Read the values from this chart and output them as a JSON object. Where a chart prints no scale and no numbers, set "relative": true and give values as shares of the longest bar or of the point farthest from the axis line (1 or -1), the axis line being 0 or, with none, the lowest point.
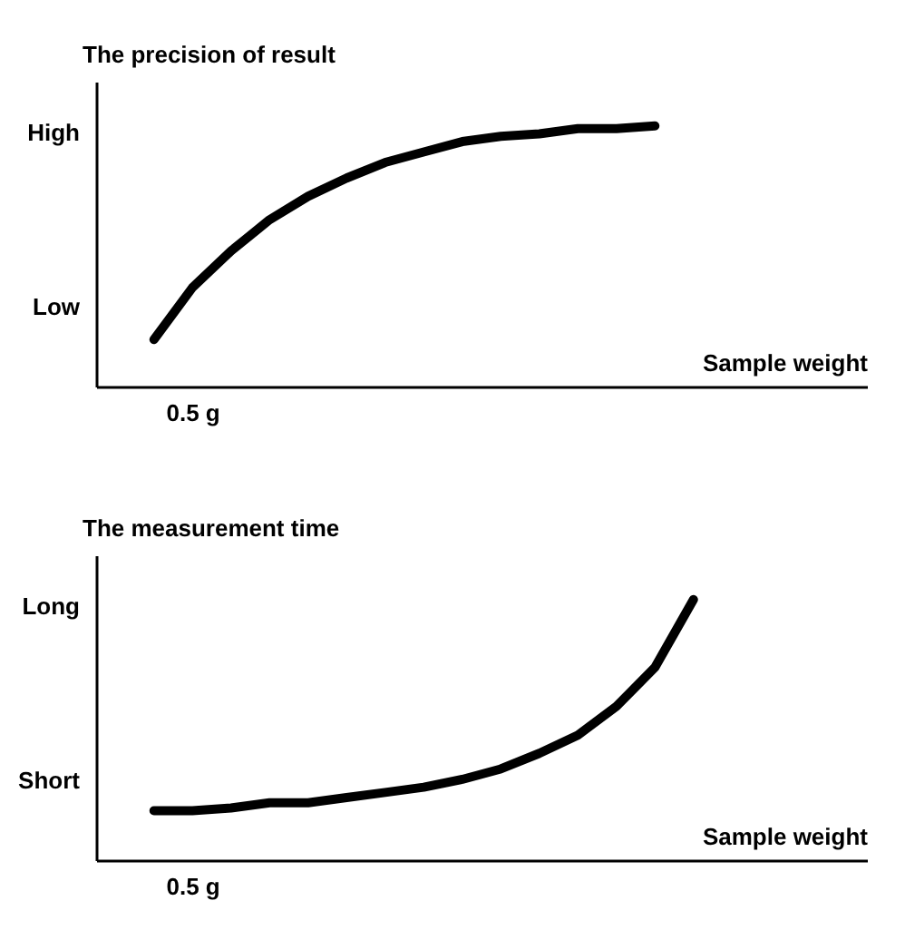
{
  "chart_data": [
    {
      "type": "line",
      "ylabel": "The precision of result",
      "xlabel": "Sample weight",
      "line_style": "solid",
      "grid": false,
      "legend": false,
      "relative": true,
      "annotations": [
        "Low",
        "High",
        "0.5 g"
      ],
      "categories": [
        null,
        null,
        null,
        null,
        null,
        null,
        null,
        null,
        null,
        null,
        null,
        null,
        null,
        null,
        null,
        null,
        null,
        null,
        null,
        null
      ],
      "series": [
        {
          "color": "#000000",
          "values": [
            null,
            0.18,
            0.38,
            0.52,
            0.64,
            0.73,
            0.8,
            0.86,
            0.9,
            0.94,
            0.96,
            0.97,
            0.99,
            0.99,
            1.0,
            null,
            null,
            null,
            null,
            null
          ]
        }
      ]
    },
    {
      "type": "line",
      "ylabel": "The measurement time",
      "xlabel": "Sample weight",
      "line_style": "solid",
      "grid": false,
      "legend": false,
      "relative": true,
      "annotations": [
        "Short",
        "Long",
        "0.5 g"
      ],
      "categories": [
        null,
        null,
        null,
        null,
        null,
        null,
        null,
        null,
        null,
        null,
        null,
        null,
        null,
        null,
        null,
        null,
        null,
        null,
        null,
        null
      ],
      "series": [
        {
          "color": "#000000",
          "values": [
            null,
            0.19,
            0.19,
            0.2,
            0.22,
            0.22,
            0.24,
            0.26,
            0.28,
            0.31,
            0.35,
            0.41,
            0.48,
            0.59,
            0.74,
            1.0,
            null,
            null,
            null,
            null
          ]
        }
      ]
    }
  ]
}
